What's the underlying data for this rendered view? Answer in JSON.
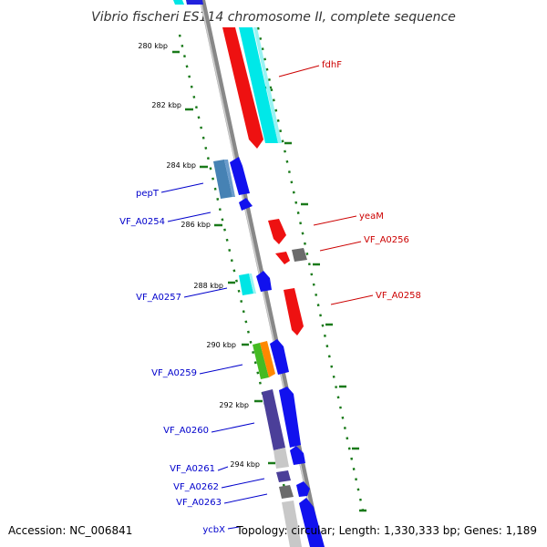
{
  "title": "Vibrio fischeri ES114 chromosome II, complete sequence",
  "footer": {
    "accession": "Accession: NC_006841",
    "info": "Topology: circular; Length: 1,330,333 bp; Genes: 1,189"
  },
  "colors": {
    "backbone": "#888888",
    "ticks": "#1a7a1a",
    "forward_label": "#0000cc",
    "reverse_label": "#cc0000"
  },
  "map": {
    "type": "linear-zoom-genome-map",
    "kbp_labels": [
      "280 kbp",
      "282 kbp",
      "284 kbp",
      "286 kbp",
      "288 kbp",
      "290 kbp",
      "292 kbp",
      "294 kbp"
    ],
    "reverse_genes": [
      {
        "name": "fdhF"
      },
      {
        "name": "yeaM"
      },
      {
        "name": "VF_A0256"
      },
      {
        "name": "VF_A0258"
      }
    ],
    "forward_genes": [
      {
        "name": "pepT"
      },
      {
        "name": "VF_A0254"
      },
      {
        "name": "VF_A0257"
      },
      {
        "name": "VF_A0259"
      },
      {
        "name": "VF_A0260"
      },
      {
        "name": "VF_A0261"
      },
      {
        "name": "VF_A0262"
      },
      {
        "name": "VF_A0263"
      },
      {
        "name": "ycbX"
      }
    ]
  }
}
